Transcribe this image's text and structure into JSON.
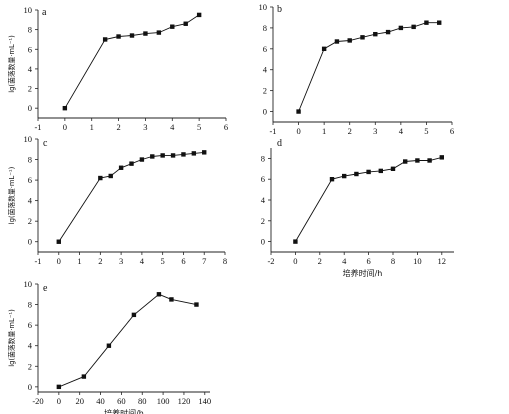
{
  "chart_data": [
    {
      "type": "line",
      "panel_label": "a",
      "ylabel": "lg(菌落数量·mL⁻¹)",
      "xlabel": "",
      "xlim": [
        -1,
        6
      ],
      "ylim": [
        -1,
        10
      ],
      "xticks": [
        -1,
        0,
        1,
        2,
        3,
        4,
        5,
        6
      ],
      "yticks": [
        0,
        2,
        4,
        6,
        8,
        10
      ],
      "x": [
        0,
        1.5,
        2,
        2.5,
        3,
        3.5,
        4,
        4.5,
        5
      ],
      "y": [
        0,
        7.0,
        7.3,
        7.4,
        7.6,
        7.7,
        8.3,
        8.6,
        9.5
      ]
    },
    {
      "type": "line",
      "panel_label": "b",
      "ylabel": "",
      "xlabel": "",
      "xlim": [
        -1,
        6
      ],
      "ylim": [
        -1,
        10
      ],
      "xticks": [
        -1,
        0,
        1,
        2,
        3,
        4,
        5,
        6
      ],
      "yticks": [
        0,
        2,
        4,
        6,
        8,
        10
      ],
      "x": [
        0,
        1,
        1.5,
        2,
        2.5,
        3,
        3.5,
        4,
        4.5,
        5,
        5.5
      ],
      "y": [
        0,
        6.0,
        6.7,
        6.8,
        7.1,
        7.4,
        7.6,
        8.0,
        8.1,
        8.5,
        8.5
      ]
    },
    {
      "type": "line",
      "panel_label": "c",
      "ylabel": "lg(菌落数量·mL⁻¹)",
      "xlabel": "",
      "xlim": [
        -1,
        8
      ],
      "ylim": [
        -1,
        10
      ],
      "xticks": [
        -1,
        0,
        1,
        2,
        3,
        4,
        5,
        6,
        7,
        8
      ],
      "yticks": [
        0,
        2,
        4,
        6,
        8,
        10
      ],
      "x": [
        0,
        2,
        2.5,
        3,
        3.5,
        4,
        4.5,
        5,
        5.5,
        6,
        6.5,
        7
      ],
      "y": [
        0,
        6.2,
        6.4,
        7.2,
        7.6,
        8.0,
        8.3,
        8.4,
        8.4,
        8.5,
        8.6,
        8.7
      ]
    },
    {
      "type": "line",
      "panel_label": "d",
      "ylabel": "",
      "xlabel": "培养时间/h",
      "xlim": [
        -2,
        13
      ],
      "ylim": [
        -1,
        9
      ],
      "xticks": [
        -2,
        0,
        2,
        4,
        6,
        8,
        10,
        12
      ],
      "yticks": [
        0,
        2,
        4,
        6,
        8
      ],
      "x": [
        0,
        3,
        4,
        5,
        6,
        7,
        8,
        9,
        10,
        11,
        12
      ],
      "y": [
        0,
        6.0,
        6.3,
        6.5,
        6.7,
        6.8,
        7.0,
        7.7,
        7.8,
        7.8,
        8.1
      ]
    },
    {
      "type": "line",
      "panel_label": "e",
      "ylabel": "lg(菌落数量·mL⁻¹)",
      "xlabel": "培养时间/h",
      "xlim": [
        -20,
        145
      ],
      "ylim": [
        -0.5,
        10
      ],
      "xticks": [
        -20,
        0,
        20,
        40,
        60,
        80,
        100,
        120,
        140
      ],
      "yticks": [
        0,
        2,
        4,
        6,
        8,
        10
      ],
      "x": [
        0,
        24,
        48,
        72,
        96,
        108,
        132
      ],
      "y": [
        0,
        1.0,
        4.0,
        7.0,
        9.0,
        8.5,
        8.0
      ]
    }
  ]
}
